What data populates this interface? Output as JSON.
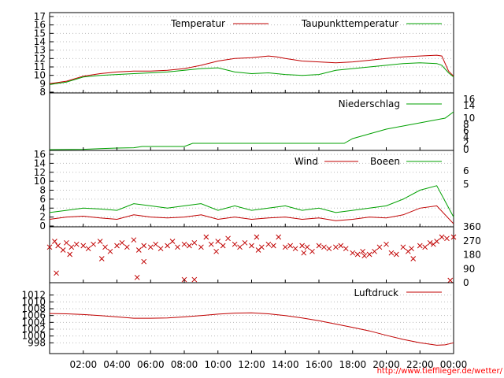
{
  "colors": {
    "temperature": "#c00000",
    "dewpoint": "#00a000",
    "precipitation": "#00a000",
    "wind": "#c00000",
    "gusts": "#00a000",
    "direction": "#c00000",
    "pressure": "#c00000",
    "credit": "#ff0000"
  },
  "x_ticks": [
    "02:00",
    "04:00",
    "06:00",
    "08:00",
    "10:00",
    "12:00",
    "14:00",
    "16:00",
    "18:00",
    "20:00",
    "22:00",
    "00:00"
  ],
  "credit": "http://www.tiefflieger.de/wetter/",
  "chart_data": [
    {
      "id": "temperature",
      "type": "line",
      "x_unit": "hours",
      "x_range": [
        0,
        24
      ],
      "ylim": [
        8,
        17
      ],
      "left_ticks": [
        "8",
        "9",
        "10",
        "11",
        "12",
        "13",
        "14",
        "15",
        "16",
        "17"
      ],
      "grid": true,
      "legend_position": "top-right",
      "series": [
        {
          "name": "Temperatur",
          "color": "#c00000",
          "x": [
            0,
            1,
            2,
            3,
            4,
            5,
            6,
            7,
            8,
            9,
            10,
            11,
            12,
            13,
            13.5,
            14,
            15,
            16,
            17,
            18,
            19,
            20,
            21,
            22,
            23,
            23.3,
            23.7,
            24
          ],
          "y": [
            9.0,
            9.3,
            9.9,
            10.2,
            10.4,
            10.5,
            10.5,
            10.6,
            10.8,
            11.2,
            11.7,
            12.0,
            12.1,
            12.3,
            12.2,
            12.0,
            11.7,
            11.6,
            11.5,
            11.6,
            11.8,
            12.0,
            12.2,
            12.3,
            12.4,
            12.3,
            10.5,
            9.9
          ]
        },
        {
          "name": "Taupunkttemperatur",
          "color": "#00a000",
          "x": [
            0,
            1,
            2,
            3,
            4,
            5,
            6,
            7,
            8,
            9,
            10,
            11,
            12,
            13,
            14,
            15,
            16,
            17,
            18,
            19,
            20,
            21,
            22,
            23,
            23.3,
            23.7,
            24
          ],
          "y": [
            8.9,
            9.2,
            9.8,
            10.0,
            10.1,
            10.2,
            10.3,
            10.4,
            10.6,
            10.8,
            10.9,
            10.4,
            10.2,
            10.3,
            10.1,
            10.0,
            10.1,
            10.6,
            10.8,
            11.0,
            11.2,
            11.4,
            11.5,
            11.4,
            11.2,
            10.3,
            9.8
          ]
        }
      ]
    },
    {
      "id": "precipitation",
      "type": "line",
      "x_unit": "hours",
      "x_range": [
        0,
        24
      ],
      "ylim": [
        0,
        16
      ],
      "right_ticks": [
        "0",
        "2",
        "4",
        "6",
        "8",
        "10",
        "14",
        "16"
      ],
      "grid": false,
      "legend_position": "top-right",
      "series": [
        {
          "name": "Niederschlag",
          "color": "#00a000",
          "x": [
            0,
            2,
            3,
            4,
            5,
            5.5,
            8,
            8.5,
            17.5,
            18,
            19,
            20,
            21,
            22,
            23,
            23.5,
            24
          ],
          "y": [
            0,
            0.1,
            0.3,
            0.5,
            0.6,
            1.0,
            1.0,
            2.0,
            2.0,
            3.5,
            5.0,
            6.5,
            7.5,
            8.5,
            9.5,
            10.0,
            12.0
          ]
        }
      ]
    },
    {
      "id": "wind",
      "type": "line",
      "x_unit": "hours",
      "x_range": [
        0,
        24
      ],
      "ylim": [
        0,
        16
      ],
      "left_ticks": [
        "0",
        "2",
        "4",
        "6",
        "8",
        "10",
        "12",
        "14",
        "16"
      ],
      "right_ticks": [
        "5",
        "6"
      ],
      "grid": true,
      "legend_position": "top-right",
      "series": [
        {
          "name": "Wind",
          "color": "#c00000",
          "x": [
            0,
            1,
            2,
            3,
            4,
            5,
            6,
            7,
            8,
            9,
            10,
            11,
            12,
            13,
            14,
            15,
            16,
            17,
            18,
            19,
            20,
            21,
            22,
            23,
            24
          ],
          "y": [
            1.5,
            2.0,
            2.2,
            1.8,
            1.5,
            2.5,
            2.0,
            1.8,
            2.0,
            2.5,
            1.5,
            2.0,
            1.5,
            1.8,
            2.0,
            1.5,
            1.8,
            1.2,
            1.5,
            2.0,
            1.8,
            2.5,
            4.0,
            4.5,
            0.5
          ]
        },
        {
          "name": "Boeen",
          "color": "#00a000",
          "x": [
            0,
            1,
            2,
            3,
            4,
            5,
            6,
            7,
            8,
            9,
            10,
            11,
            12,
            13,
            14,
            15,
            16,
            17,
            18,
            19,
            20,
            21,
            22,
            23,
            24
          ],
          "y": [
            3.0,
            3.5,
            4.0,
            3.8,
            3.5,
            5.0,
            4.5,
            4.0,
            4.5,
            5.0,
            3.5,
            4.5,
            3.5,
            4.0,
            4.5,
            3.5,
            4.0,
            3.0,
            3.5,
            4.0,
            4.5,
            6.0,
            8.0,
            9.0,
            2.0
          ]
        }
      ]
    },
    {
      "id": "direction",
      "type": "scatter",
      "x_unit": "hours",
      "x_range": [
        0,
        24
      ],
      "ylim": [
        0,
        360
      ],
      "right_ticks": [
        "0",
        "90",
        "180",
        "270",
        "360"
      ],
      "grid": false,
      "series": [
        {
          "marker": "x",
          "color": "#c00000",
          "x": [
            0,
            0.3,
            0.5,
            0.8,
            1.0,
            1.3,
            1.6,
            2.0,
            2.3,
            2.6,
            3.0,
            3.3,
            3.6,
            4.0,
            4.3,
            4.6,
            5.0,
            5.3,
            5.6,
            6.0,
            6.3,
            6.6,
            7.0,
            7.3,
            7.6,
            8.0,
            8.3,
            8.6,
            9.0,
            9.3,
            9.6,
            10.0,
            10.3,
            10.6,
            11.0,
            11.3,
            11.6,
            12.0,
            12.3,
            12.6,
            13.0,
            13.3,
            13.6,
            14.0,
            14.3,
            14.6,
            15.0,
            15.3,
            15.6,
            16.0,
            16.3,
            16.6,
            17.0,
            17.3,
            17.6,
            18.0,
            18.3,
            18.6,
            19.0,
            19.3,
            19.6,
            20.0,
            20.3,
            20.6,
            21.0,
            21.3,
            21.6,
            22.0,
            22.3,
            22.6,
            23.0,
            23.3,
            23.6,
            24.0,
            0.4,
            5.2,
            8.0,
            8.6,
            23.8,
            1.2,
            3.1,
            5.6,
            9.9,
            12.4,
            15.1,
            18.7,
            21.5,
            22.8
          ],
          "y": [
            230,
            270,
            240,
            210,
            260,
            230,
            250,
            240,
            220,
            250,
            270,
            230,
            200,
            240,
            260,
            230,
            280,
            210,
            240,
            230,
            250,
            220,
            240,
            270,
            230,
            250,
            240,
            260,
            230,
            300,
            250,
            270,
            240,
            290,
            250,
            230,
            260,
            240,
            300,
            230,
            250,
            240,
            300,
            230,
            240,
            220,
            240,
            230,
            200,
            240,
            230,
            220,
            230,
            240,
            220,
            190,
            180,
            200,
            180,
            200,
            230,
            250,
            190,
            180,
            230,
            200,
            150,
            240,
            230,
            260,
            270,
            300,
            290,
            300,
            50,
            20,
            5,
            5,
            0,
            180,
            150,
            130,
            200,
            210,
            190,
            170,
            220,
            250
          ]
        }
      ]
    },
    {
      "id": "pressure",
      "type": "line",
      "x_unit": "hours",
      "x_range": [
        0,
        24
      ],
      "ylim": [
        996,
        1014
      ],
      "left_ticks": [
        "998",
        "1000",
        "1002",
        "1004",
        "1006",
        "1008",
        "1010",
        "1012"
      ],
      "grid": true,
      "legend_position": "top-right",
      "series": [
        {
          "name": "Luftdruck",
          "color": "#c00000",
          "x": [
            0,
            1,
            2,
            3,
            4,
            5,
            6,
            7,
            8,
            9,
            10,
            11,
            12,
            13,
            14,
            15,
            16,
            17,
            18,
            19,
            20,
            21,
            22,
            23,
            23.5,
            24
          ],
          "y": [
            1006.6,
            1006.5,
            1006.3,
            1006.0,
            1005.6,
            1005.2,
            1005.2,
            1005.3,
            1005.6,
            1006.0,
            1006.4,
            1006.7,
            1006.8,
            1006.5,
            1006.0,
            1005.3,
            1004.5,
            1003.5,
            1002.5,
            1001.5,
            1000.2,
            999.0,
            998.0,
            997.3,
            997.4,
            998.0
          ]
        }
      ]
    }
  ]
}
